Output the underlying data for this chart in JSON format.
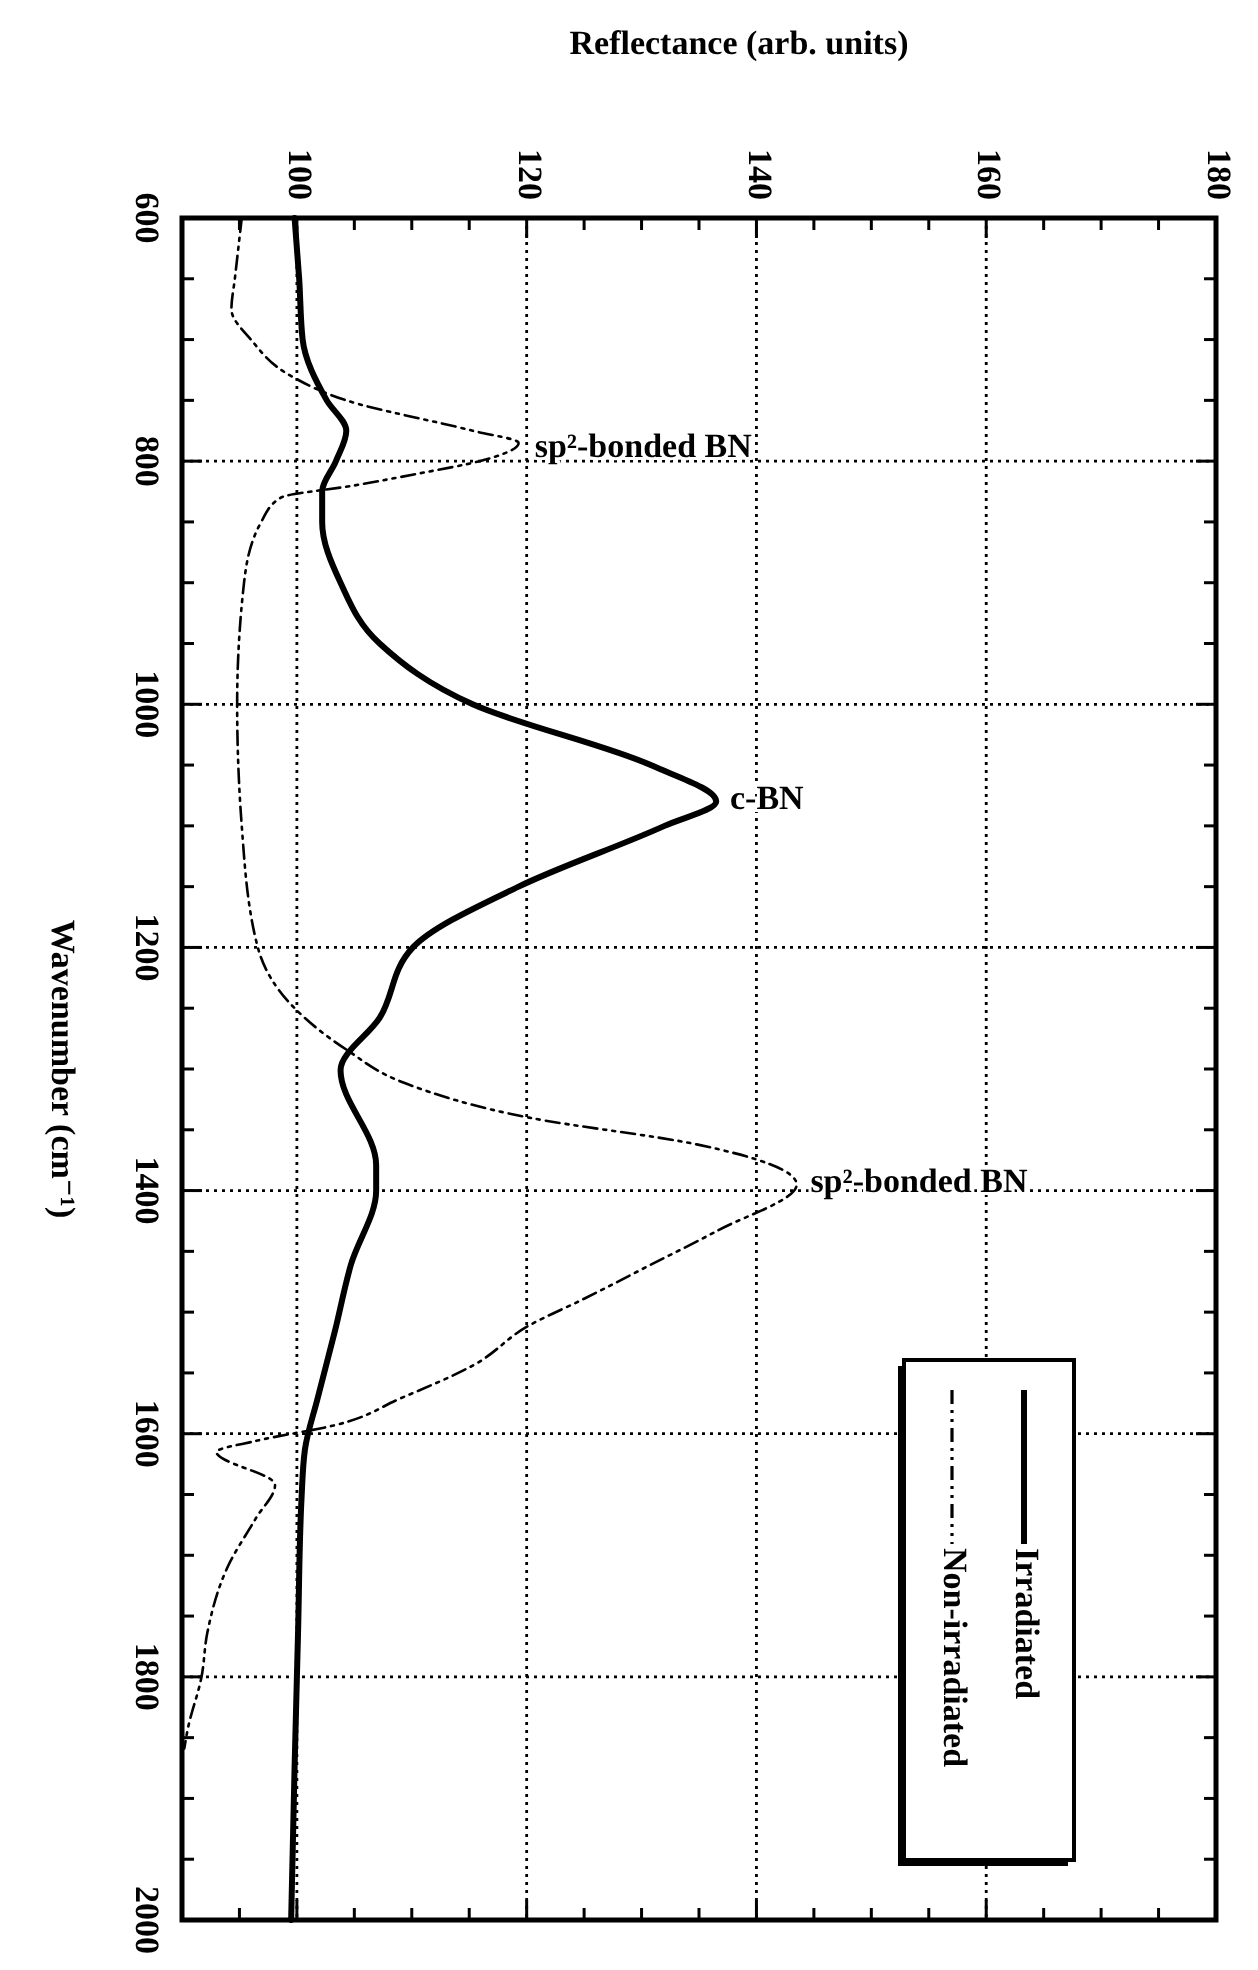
{
  "chart_data": {
    "type": "line",
    "xlabel": "Reflectance (arb. units)",
    "ylabel": "Wavenumber (cm⁻¹)",
    "xlim": [
      90,
      180
    ],
    "ylim": [
      2000,
      600
    ],
    "xticks": [
      {
        "value": 95,
        "label": null
      },
      100,
      {
        "value": 105,
        "label": null
      },
      {
        "value": 110,
        "label": null
      },
      {
        "value": 115,
        "label": null
      },
      120,
      {
        "value": 125,
        "label": null
      },
      {
        "value": 130,
        "label": null
      },
      {
        "value": 135,
        "label": null
      },
      140,
      {
        "value": 145,
        "label": null
      },
      {
        "value": 150,
        "label": null
      },
      {
        "value": 155,
        "label": null
      },
      160,
      {
        "value": 165,
        "label": null
      },
      {
        "value": 170,
        "label": null
      },
      {
        "value": 175,
        "label": null
      },
      180
    ],
    "yticks": [
      600,
      {
        "value": 650,
        "label": null
      },
      {
        "value": 700,
        "label": null
      },
      {
        "value": 750,
        "label": null
      },
      800,
      {
        "value": 850,
        "label": null
      },
      {
        "value": 900,
        "label": null
      },
      {
        "value": 950,
        "label": null
      },
      1000,
      {
        "value": 1050,
        "label": null
      },
      {
        "value": 1100,
        "label": null
      },
      {
        "value": 1150,
        "label": null
      },
      1200,
      {
        "value": 1250,
        "label": null
      },
      {
        "value": 1300,
        "label": null
      },
      {
        "value": 1350,
        "label": null
      },
      1400,
      {
        "value": 1450,
        "label": null
      },
      {
        "value": 1500,
        "label": null
      },
      {
        "value": 1550,
        "label": null
      },
      1600,
      {
        "value": 1650,
        "label": null
      },
      {
        "value": 1700,
        "label": null
      },
      {
        "value": 1750,
        "label": null
      },
      1800,
      {
        "value": 1850,
        "label": null
      },
      {
        "value": 1900,
        "label": null
      },
      {
        "value": 1950,
        "label": null
      },
      2000
    ],
    "grid": true,
    "legend": "bottom right",
    "marker": "none",
    "series": [
      {
        "name": "Irradiated",
        "color": "#000000",
        "line_style": "solid",
        "values": [
          600,
          650,
          700,
          750,
          775,
          800,
          825,
          850,
          900,
          950,
          1000,
          1050,
          1080,
          1100,
          1150,
          1200,
          1258,
          1301,
          1379,
          1400,
          1461,
          1516,
          1571,
          1613,
          1654,
          1764,
          1874,
          2000
        ],
        "x": [
          99.8,
          100.2,
          100.5,
          102.6,
          104.3,
          103.4,
          102.2,
          102.2,
          103.8,
          107.2,
          115.3,
          130.8,
          136.5,
          132,
          119.3,
          110.1,
          107.2,
          103.8,
          106.9,
          106.9,
          104.7,
          103.3,
          101.8,
          100.7,
          100.4,
          100.1,
          99.8,
          99.5
        ]
      },
      {
        "name": "Non-irradiated",
        "color": "#000000",
        "line_style": "dashed",
        "values": [
          600,
          650,
          675,
          700,
          730,
          750,
          775,
          785,
          800,
          810,
          820,
          830,
          850,
          900,
          1000,
          1100,
          1200,
          1250,
          1284,
          1312,
          1340,
          1362,
          1395,
          1433,
          1461,
          1489,
          1511,
          1544,
          1571,
          1593,
          1606,
          1615,
          1642,
          1670,
          1709,
          1764,
          1800,
          1843,
          1859
        ],
        "x": [
          95.2,
          94.6,
          94.3,
          96,
          99.5,
          104.3,
          115.3,
          119.3,
          115.9,
          110.7,
          105,
          98.6,
          96.9,
          95.4,
          94.8,
          95.2,
          96.6,
          99.8,
          104.3,
          109.5,
          120.2,
          134.8,
          143.5,
          136.6,
          130.8,
          125,
          120.2,
          115.3,
          109,
          103.3,
          96.4,
          93,
          98.1,
          96.4,
          94,
          92.2,
          91.7,
          90.5,
          90.2
        ]
      }
    ],
    "annotations": [
      {
        "text": "sp²-bonded BN",
        "x": 120,
        "y": 790
      },
      {
        "text": "c-BN",
        "x": 137,
        "y": 1080
      },
      {
        "text": "sp²-bonded BN",
        "x": 144,
        "y": 1395
      }
    ]
  }
}
